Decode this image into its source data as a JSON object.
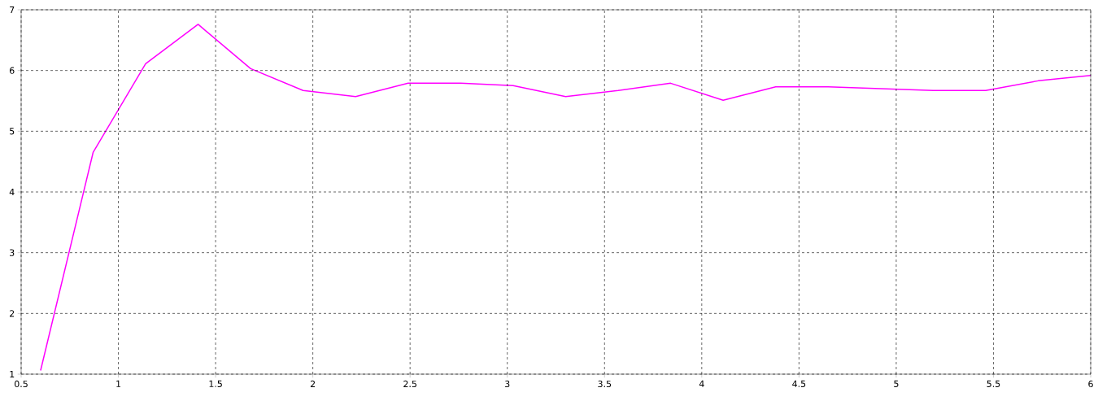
{
  "chart_data": {
    "type": "line",
    "x": [
      0.6,
      0.87,
      1.14,
      1.41,
      1.68,
      1.95,
      2.22,
      2.49,
      2.76,
      3.03,
      3.3,
      3.57,
      3.84,
      4.11,
      4.38,
      4.65,
      4.92,
      5.19,
      5.46,
      5.73,
      6.0
    ],
    "series": [
      {
        "color": "#ff00ff",
        "values": [
          1.06,
          4.65,
          6.11,
          6.76,
          6.03,
          5.67,
          5.57,
          5.79,
          5.79,
          5.75,
          5.57,
          5.67,
          5.79,
          5.51,
          5.73,
          5.73,
          5.7,
          5.67,
          5.67,
          5.83,
          5.92
        ]
      }
    ],
    "xlim": [
      0.5,
      6
    ],
    "ylim": [
      1,
      7
    ],
    "xticks": [
      0.5,
      1,
      1.5,
      2,
      2.5,
      3,
      3.5,
      4,
      4.5,
      5,
      5.5,
      6
    ],
    "yticks": [
      1,
      2,
      3,
      4,
      5,
      6,
      7
    ],
    "grid": true,
    "marker": "none",
    "line_style": "solid"
  }
}
